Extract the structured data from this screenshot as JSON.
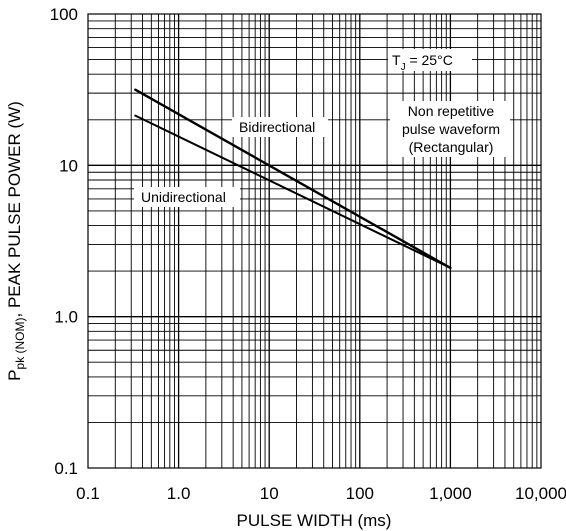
{
  "chart_data": {
    "type": "line",
    "x_scale": "log",
    "y_scale": "log",
    "xlim": [
      0.1,
      10000
    ],
    "ylim": [
      0.1,
      100
    ],
    "grid": true,
    "x_ticks": [
      "0.1",
      "1.0",
      "10",
      "100",
      "1,000",
      "10,000"
    ],
    "y_ticks": [
      "100",
      "10",
      "1.0",
      "0.1"
    ],
    "xlabel": "PULSE WIDTH (ms)",
    "ylabel": {
      "main": "P",
      "sub": "pk (NOM)",
      "rest": ", PEAK PULSE POWER (W)"
    },
    "series": [
      {
        "name": "Bidirectional",
        "x": [
          0.333,
          1000
        ],
        "y": [
          31.6,
          2.1
        ]
      },
      {
        "name": "Unidirectional",
        "x": [
          0.333,
          1000
        ],
        "y": [
          21.3,
          2.1
        ]
      }
    ],
    "annotations": {
      "temperature": {
        "main": "T",
        "sub": "J",
        "rest": " = 25°C"
      },
      "waveform": [
        "Non repetitive",
        "pulse waveform",
        "(Rectangular)"
      ]
    }
  }
}
